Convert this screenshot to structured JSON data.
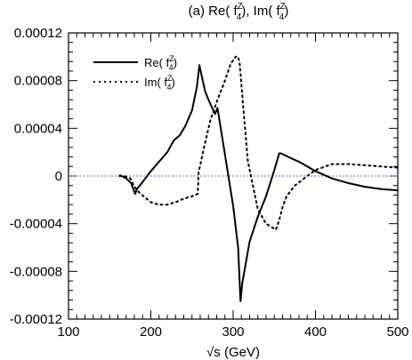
{
  "chart_data": {
    "type": "line",
    "title": {
      "prefix": "(a) Re( f",
      "mid": "), Im( f",
      "suffix": ")",
      "sup": "Z",
      "sub": "4"
    },
    "xlabel": "√s (GeV)",
    "ylabel": "",
    "xlim": [
      100,
      500
    ],
    "ylim": [
      -0.00012,
      0.00012
    ],
    "x_ticks": [
      100,
      200,
      300,
      400,
      500
    ],
    "x_tick_labels": [
      "100",
      "200",
      "300",
      "400",
      "500"
    ],
    "y_ticks": [
      0.00012,
      8e-05,
      4e-05,
      0,
      -4e-05,
      -8e-05,
      -0.00012
    ],
    "y_tick_labels": [
      "0.00012",
      "0.00008",
      "0.00004",
      "0",
      "-0.00004",
      "-0.00008",
      "-0.00012"
    ],
    "legend_position": "top-left",
    "grid": false,
    "zero_line": true,
    "zero_line_color": "#6666cc",
    "series": [
      {
        "name": "Re( f4Z )",
        "legend_main": "Re( f",
        "legend_sup": "Z",
        "legend_sub": "4",
        "legend_tail": ")",
        "style": "solid",
        "color": "#000000",
        "x": [
          162,
          170,
          176,
          181,
          183,
          190,
          200,
          210,
          220,
          228,
          235,
          242,
          250,
          256,
          259,
          262,
          266,
          270,
          274,
          278,
          281,
          290,
          300,
          306,
          309,
          311,
          320,
          330,
          340,
          350,
          356,
          358,
          370,
          380,
          390,
          400,
          420,
          440,
          460,
          480,
          500
        ],
        "y": [
          1e-06,
          -2e-06,
          -6e-06,
          -1.5e-05,
          -1.1e-05,
          -5e-06,
          4e-06,
          1.2e-05,
          2e-05,
          3e-05,
          3.4e-05,
          4.2e-05,
          5.5e-05,
          7.5e-05,
          9.3e-05,
          8.3e-05,
          7.1e-05,
          6.4e-05,
          5.8e-05,
          5.2e-05,
          5.7e-05,
          1.8e-05,
          -2.5e-05,
          -6e-05,
          -0.000105,
          -9e-05,
          -5.5e-05,
          -3.4e-05,
          -1.7e-05,
          5e-06,
          1.9e-05,
          1.9e-05,
          1.5e-05,
          1.2e-05,
          8e-06,
          4e-06,
          -2e-06,
          -6e-06,
          -9e-06,
          -1.1e-05,
          -1.2e-05
        ]
      },
      {
        "name": "Im( f4Z )",
        "legend_main": "Im( f",
        "legend_sup": "Z",
        "legend_sub": "4",
        "legend_tail": ")",
        "style": "dotted",
        "color": "#000000",
        "x": [
          162,
          168,
          175,
          180,
          186,
          193,
          200,
          210,
          220,
          230,
          240,
          250,
          257,
          258,
          265,
          272,
          280,
          290,
          297,
          303,
          306,
          308,
          312,
          318,
          330,
          340,
          352,
          356,
          360,
          365,
          375,
          390,
          400,
          420,
          440,
          460,
          480,
          500
        ],
        "y": [
          0.0,
          0.0,
          -2e-06,
          -9e-06,
          -1.4e-05,
          -1.8e-05,
          -2.2e-05,
          -2.4e-05,
          -2.4e-05,
          -2.2e-05,
          -1.9e-05,
          -1.7e-05,
          -1.5e-05,
          3e-06,
          2.5e-05,
          4.6e-05,
          6.2e-05,
          8e-05,
          9.4e-05,
          0.0001,
          0.0001,
          9.4e-05,
          6e-05,
          1.2e-05,
          -2.8e-05,
          -4e-05,
          -4.5e-05,
          -3.7e-05,
          -2.6e-05,
          -1.7e-05,
          -8e-06,
          0.0,
          5e-06,
          1e-05,
          1e-05,
          9e-06,
          8e-06,
          7e-06
        ]
      }
    ]
  }
}
